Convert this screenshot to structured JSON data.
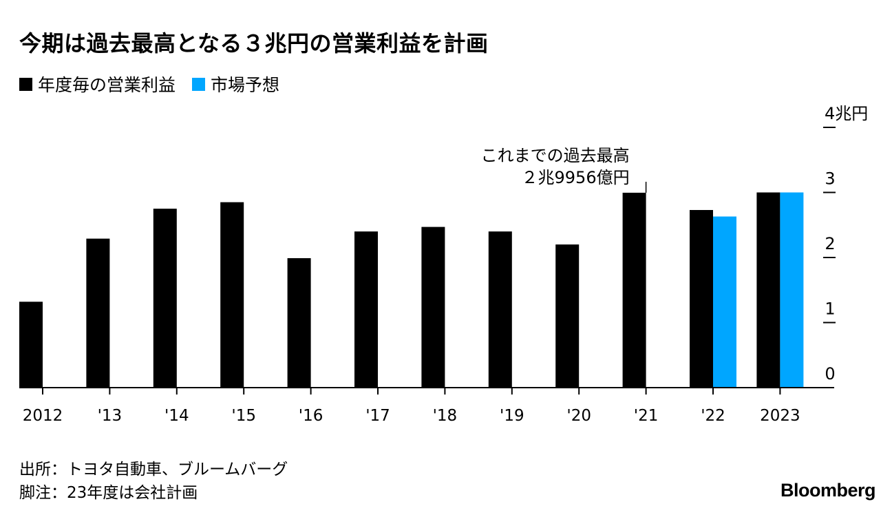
{
  "title": "今期は過去最高となる３兆円の営業利益を計画",
  "legend": [
    {
      "label": "年度毎の営業利益",
      "color": "#000000"
    },
    {
      "label": "市場予想",
      "color": "#00a6ff"
    }
  ],
  "chart_data": {
    "type": "bar",
    "title": "今期は過去最高となる３兆円の営業利益を計画",
    "categories": [
      "2012",
      "'13",
      "'14",
      "'15",
      "'16",
      "'17",
      "'18",
      "'19",
      "'20",
      "'21",
      "'22",
      "2023"
    ],
    "series": [
      {
        "name": "年度毎の営業利益",
        "color": "#000000",
        "values": [
          1.32,
          2.29,
          2.75,
          2.85,
          1.99,
          2.4,
          2.47,
          2.4,
          2.2,
          2.9956,
          2.73,
          3.0
        ]
      },
      {
        "name": "市場予想",
        "color": "#00a6ff",
        "values": [
          null,
          null,
          null,
          null,
          null,
          null,
          null,
          null,
          null,
          null,
          2.63,
          3.0
        ]
      }
    ],
    "ylim": [
      0,
      4
    ],
    "yticks": [
      0,
      1,
      2,
      3,
      4
    ],
    "ytick_labels": [
      "0",
      "1",
      "2",
      "3",
      "4兆円"
    ],
    "yaxis_position": "right",
    "annotation": {
      "category": "'21",
      "lines": [
        "これまでの過去最高",
        "２兆9956億円"
      ]
    }
  },
  "footer": {
    "source": "出所：トヨタ自動車、ブルームバーグ",
    "note": "脚注：23年度は会社計画"
  },
  "brand": "Bloomberg"
}
